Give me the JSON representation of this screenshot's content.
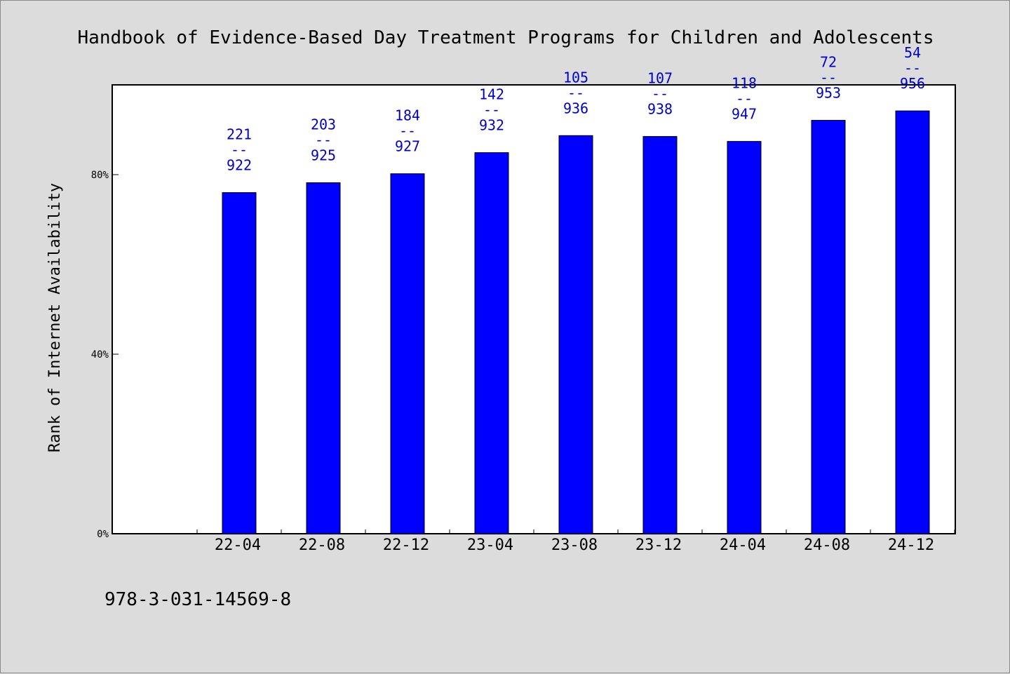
{
  "chart_data": {
    "type": "bar",
    "title": "Handbook of Evidence-Based Day Treatment Programs for Children and Adolescents",
    "ylabel": "Rank of Internet Availability",
    "xlabel": "",
    "categories": [
      "22-04",
      "22-08",
      "22-12",
      "23-04",
      "23-08",
      "23-12",
      "24-04",
      "24-08",
      "24-12"
    ],
    "values": [
      76,
      78.2,
      80.2,
      84.9,
      88.7,
      88.5,
      87.4,
      92.1,
      94.2
    ],
    "data_labels": [
      {
        "top": "221",
        "sep": "--",
        "bottom": "922"
      },
      {
        "top": "203",
        "sep": "--",
        "bottom": "925"
      },
      {
        "top": "184",
        "sep": "--",
        "bottom": "927"
      },
      {
        "top": "142",
        "sep": "--",
        "bottom": "932"
      },
      {
        "top": "105",
        "sep": "--",
        "bottom": "936"
      },
      {
        "top": "107",
        "sep": "--",
        "bottom": "938"
      },
      {
        "top": "118",
        "sep": "--",
        "bottom": "947"
      },
      {
        "top": "72",
        "sep": "--",
        "bottom": "953"
      },
      {
        "top": "54",
        "sep": "--",
        "bottom": "956"
      }
    ],
    "ylim": [
      0,
      100
    ],
    "yticks": [
      0,
      40,
      80
    ],
    "ytick_labels": [
      "0%",
      "40%",
      "80%"
    ],
    "grid": false,
    "legend": "none",
    "bar_color": "#0000ff",
    "label_color": "#0000cc"
  },
  "footnote": "978-3-031-14569-8",
  "colors": {
    "background": "#dcdcdc",
    "plot_area": "#ffffff"
  }
}
